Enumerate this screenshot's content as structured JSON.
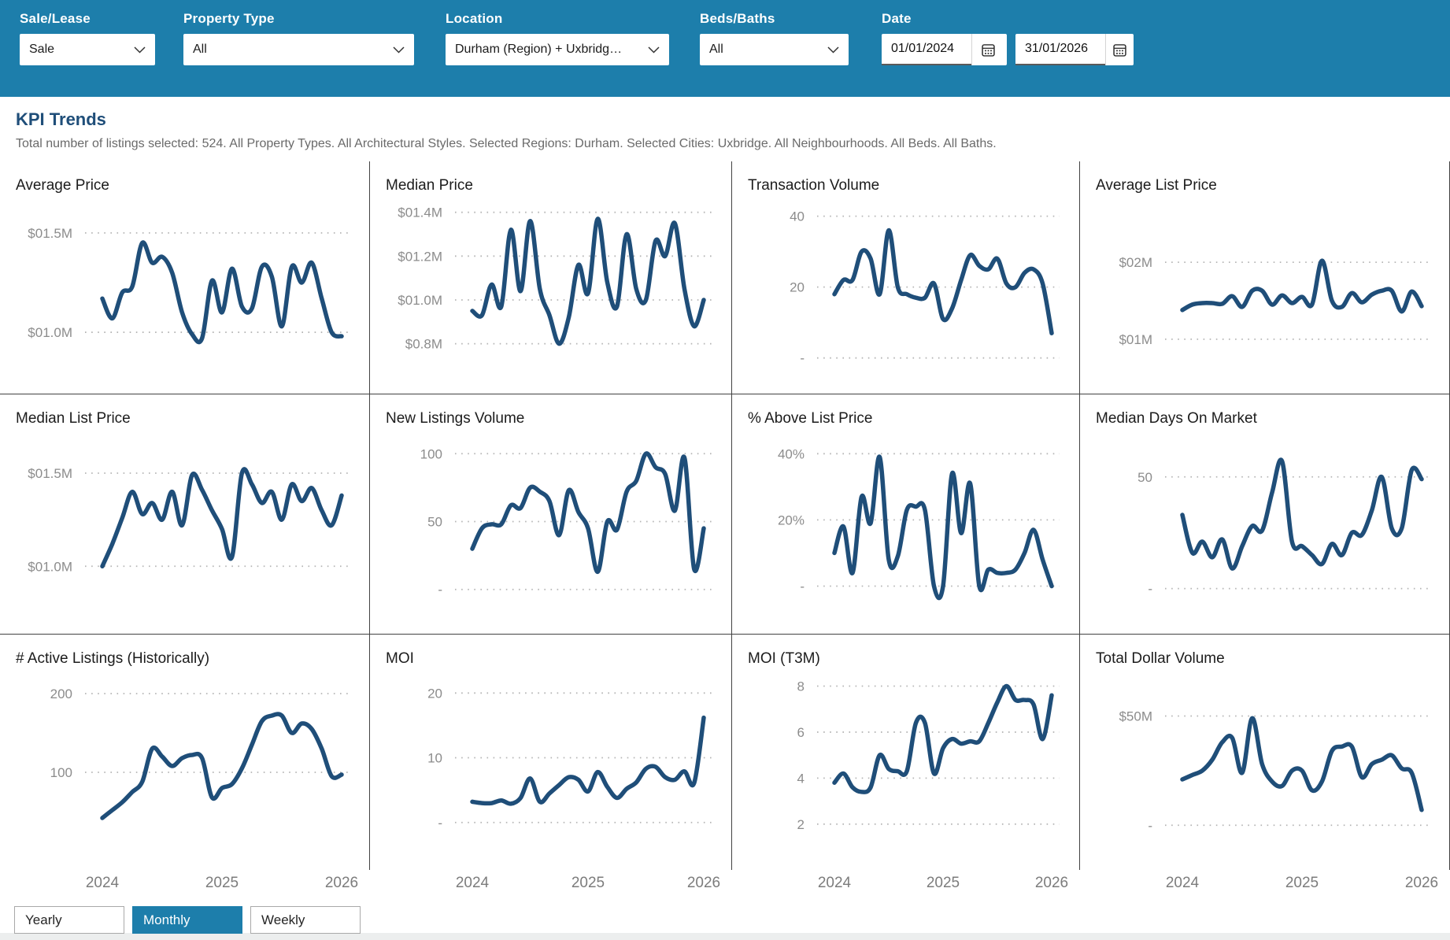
{
  "colors": {
    "accent": "#1d7eab",
    "line": "#1f4e79",
    "grid_line": "#b5b5b5",
    "divider": "#424242",
    "tick_text": "#8c8c8c",
    "title_navy": "#1f4e79"
  },
  "header": {
    "filters": [
      {
        "label": "Sale/Lease",
        "value": "Sale"
      },
      {
        "label": "Property Type",
        "value": "All"
      },
      {
        "label": "Location",
        "value": "Durham (Region) + Uxbridg…"
      },
      {
        "label": "Beds/Baths",
        "value": "All"
      }
    ],
    "date": {
      "label": "Date",
      "start": "01/01/2024",
      "end": "31/01/2026"
    }
  },
  "section": {
    "title": "KPI Trends",
    "subtitle": "Total number of listings selected: 524. All Property Types. All Architectural Styles. Selected Regions: Durham. Selected Cities: Uxbridge. All Neighbourhoods. All Beds. All Baths."
  },
  "x_axis_labels": [
    "2024",
    "2025",
    "2026"
  ],
  "toggle": {
    "options": [
      "Yearly",
      "Monthly",
      "Weekly"
    ],
    "selected": "Monthly"
  },
  "chart_data": [
    {
      "type": "line",
      "title": "Average Price",
      "slug": "average-price",
      "x_range": "monthly Jan 2024 – Jan 2026",
      "unit": "$M",
      "ticks": [
        {
          "value": 1.5,
          "label": "$01.5M"
        },
        {
          "value": 1.0,
          "label": "$01.0M"
        }
      ],
      "ymin": 0.81,
      "ymax": 1.67,
      "values": [
        1.17,
        1.07,
        1.2,
        1.23,
        1.45,
        1.35,
        1.38,
        1.3,
        1.1,
        0.99,
        0.97,
        1.26,
        1.1,
        1.32,
        1.13,
        1.12,
        1.33,
        1.28,
        1.03,
        1.33,
        1.25,
        1.35,
        1.17,
        1.0,
        0.98
      ]
    },
    {
      "type": "line",
      "title": "Median Price",
      "slug": "median-price",
      "x_range": "monthly Jan 2024 – Jan 2026",
      "unit": "$M",
      "ticks": [
        {
          "value": 1.4,
          "label": "$01.4M"
        },
        {
          "value": 1.2,
          "label": "$01.2M"
        },
        {
          "value": 1.0,
          "label": "$01.0M"
        },
        {
          "value": 0.8,
          "label": "$0.8M"
        }
      ],
      "ymin": 0.68,
      "ymax": 1.46,
      "values": [
        0.95,
        0.93,
        1.07,
        0.97,
        1.32,
        1.04,
        1.36,
        1.05,
        0.93,
        0.8,
        0.92,
        1.16,
        1.03,
        1.37,
        1.08,
        0.97,
        1.3,
        1.05,
        1.0,
        1.27,
        1.2,
        1.35,
        1.05,
        0.88,
        1.0
      ]
    },
    {
      "type": "line",
      "title": "Transaction Volume",
      "slug": "transaction-volume",
      "x_range": "monthly Jan 2024 – Jan 2026",
      "unit": "listings",
      "ticks": [
        {
          "value": 40,
          "label": "40"
        },
        {
          "value": 20,
          "label": "20"
        },
        {
          "value": 0,
          "label": "-"
        }
      ],
      "ymin": -3.4,
      "ymax": 44.8,
      "values": [
        18,
        22,
        22,
        30,
        28,
        18,
        36,
        20,
        18,
        17,
        17,
        21,
        11,
        14,
        22,
        29,
        26,
        25,
        28,
        21,
        20,
        24,
        25,
        21,
        7
      ]
    },
    {
      "type": "line",
      "title": "Average List Price",
      "slug": "average-list-price",
      "x_range": "monthly Jan 2024 – Jan 2026",
      "unit": "$M",
      "ticks": [
        {
          "value": 2,
          "label": "$02M"
        },
        {
          "value": 1,
          "label": "$01M"
        }
      ],
      "ymin": 0.6,
      "ymax": 2.82,
      "values": [
        1.38,
        1.45,
        1.47,
        1.47,
        1.46,
        1.56,
        1.42,
        1.63,
        1.63,
        1.45,
        1.57,
        1.47,
        1.55,
        1.45,
        2.02,
        1.5,
        1.42,
        1.6,
        1.48,
        1.58,
        1.63,
        1.63,
        1.36,
        1.62,
        1.43
      ]
    },
    {
      "type": "line",
      "title": "Median List Price",
      "slug": "median-list-price",
      "x_range": "monthly Jan 2024 – Jan 2026",
      "unit": "$M",
      "ticks": [
        {
          "value": 1.5,
          "label": "$01.5M"
        },
        {
          "value": 1.0,
          "label": "$01.0M"
        }
      ],
      "ymin": 0.76,
      "ymax": 1.72,
      "values": [
        1.0,
        1.12,
        1.26,
        1.4,
        1.28,
        1.34,
        1.25,
        1.4,
        1.22,
        1.49,
        1.41,
        1.3,
        1.2,
        1.05,
        1.5,
        1.44,
        1.34,
        1.4,
        1.25,
        1.44,
        1.35,
        1.42,
        1.3,
        1.22,
        1.38
      ]
    },
    {
      "type": "line",
      "title": "New Listings Volume",
      "slug": "new-listings-volume",
      "x_range": "monthly Jan 2024 – Jan 2026",
      "unit": "listings",
      "ticks": [
        {
          "value": 100,
          "label": "100"
        },
        {
          "value": 50,
          "label": "50"
        },
        {
          "value": 0,
          "label": "-"
        }
      ],
      "ymin": -15.8,
      "ymax": 115.8,
      "values": [
        30,
        45,
        48,
        48,
        62,
        60,
        75,
        72,
        65,
        40,
        73,
        57,
        45,
        13,
        50,
        44,
        72,
        80,
        100,
        90,
        85,
        58,
        97,
        15,
        45
      ]
    },
    {
      "type": "line",
      "title": "% Above List Price",
      "slug": "pct-above-list-price",
      "x_range": "monthly Jan 2024 – Jan 2026",
      "unit": "%",
      "ticks": [
        {
          "value": 40,
          "label": "40%"
        },
        {
          "value": 20,
          "label": "20%"
        },
        {
          "value": 0,
          "label": "-"
        }
      ],
      "ymin": -7.5,
      "ymax": 46.5,
      "values": [
        10,
        18,
        4,
        27,
        19,
        39,
        8,
        9,
        23,
        24,
        23,
        0,
        0,
        34,
        16,
        31,
        0,
        5,
        4,
        4,
        5,
        10,
        17,
        8,
        0
      ]
    },
    {
      "type": "line",
      "title": "Median Days On Market",
      "slug": "median-days-on-market",
      "x_range": "monthly Jan 2024 – Jan 2026",
      "unit": "days",
      "ticks": [
        {
          "value": 50,
          "label": "50"
        },
        {
          "value": 0,
          "label": "-"
        }
      ],
      "ymin": -10,
      "ymax": 70,
      "values": [
        33,
        16,
        21,
        14,
        22,
        9,
        19,
        28,
        26,
        43,
        57,
        21,
        19,
        15,
        11,
        20,
        15,
        25,
        24,
        35,
        50,
        27,
        27,
        53,
        49
      ]
    },
    {
      "type": "line",
      "title": "# Active Listings (Historically)",
      "slug": "active-listings",
      "x_range": "monthly Jan 2024 – Jan 2026",
      "unit": "listings",
      "ticks": [
        {
          "value": 200,
          "label": "200"
        },
        {
          "value": 100,
          "label": "100"
        }
      ],
      "ymin": 5,
      "ymax": 227,
      "values": [
        42,
        52,
        62,
        75,
        88,
        130,
        120,
        108,
        118,
        122,
        118,
        68,
        80,
        85,
        105,
        135,
        165,
        172,
        172,
        150,
        162,
        155,
        130,
        95,
        97
      ]
    },
    {
      "type": "line",
      "title": "MOI",
      "slug": "moi",
      "x_range": "monthly Jan 2024 – Jan 2026",
      "unit": "months",
      "ticks": [
        {
          "value": 20,
          "label": "20"
        },
        {
          "value": 10,
          "label": "10"
        },
        {
          "value": 0,
          "label": "-"
        }
      ],
      "ymin": -3.8,
      "ymax": 23.2,
      "values": [
        3.2,
        3.0,
        3.0,
        3.4,
        2.9,
        3.8,
        6.8,
        3.2,
        4.5,
        5.8,
        7.0,
        6.6,
        4.8,
        7.8,
        5.5,
        3.8,
        5.2,
        6.2,
        8.3,
        8.6,
        7.0,
        6.6,
        7.9,
        6.1,
        16.2
      ]
    },
    {
      "type": "line",
      "title": "MOI (T3M)",
      "slug": "moi-t3m",
      "x_range": "monthly Jan 2024 – Jan 2026",
      "unit": "months",
      "ticks": [
        {
          "value": 8,
          "label": "8"
        },
        {
          "value": 6,
          "label": "6"
        },
        {
          "value": 4,
          "label": "4"
        },
        {
          "value": 2,
          "label": "2"
        }
      ],
      "ymin": 1.0,
      "ymax": 8.6,
      "values": [
        3.8,
        4.2,
        3.6,
        3.4,
        3.6,
        5.0,
        4.4,
        4.3,
        4.3,
        6.4,
        6.4,
        4.2,
        5.3,
        5.7,
        5.5,
        5.6,
        5.6,
        6.4,
        7.3,
        8.0,
        7.4,
        7.4,
        7.2,
        5.7,
        7.6
      ]
    },
    {
      "type": "line",
      "title": "Total Dollar Volume",
      "slug": "total-dollar-volume",
      "x_range": "monthly Jan 2024 – Jan 2026",
      "unit": "$M",
      "ticks": [
        {
          "value": 50,
          "label": "$50M"
        },
        {
          "value": 0,
          "label": "-"
        }
      ],
      "ymin": -10,
      "ymax": 70,
      "values": [
        21,
        23,
        25,
        30,
        38,
        40,
        24,
        49,
        28,
        20,
        18,
        25,
        25,
        16,
        20,
        34,
        36,
        36,
        22,
        28,
        30,
        32,
        26,
        24,
        7
      ]
    }
  ]
}
